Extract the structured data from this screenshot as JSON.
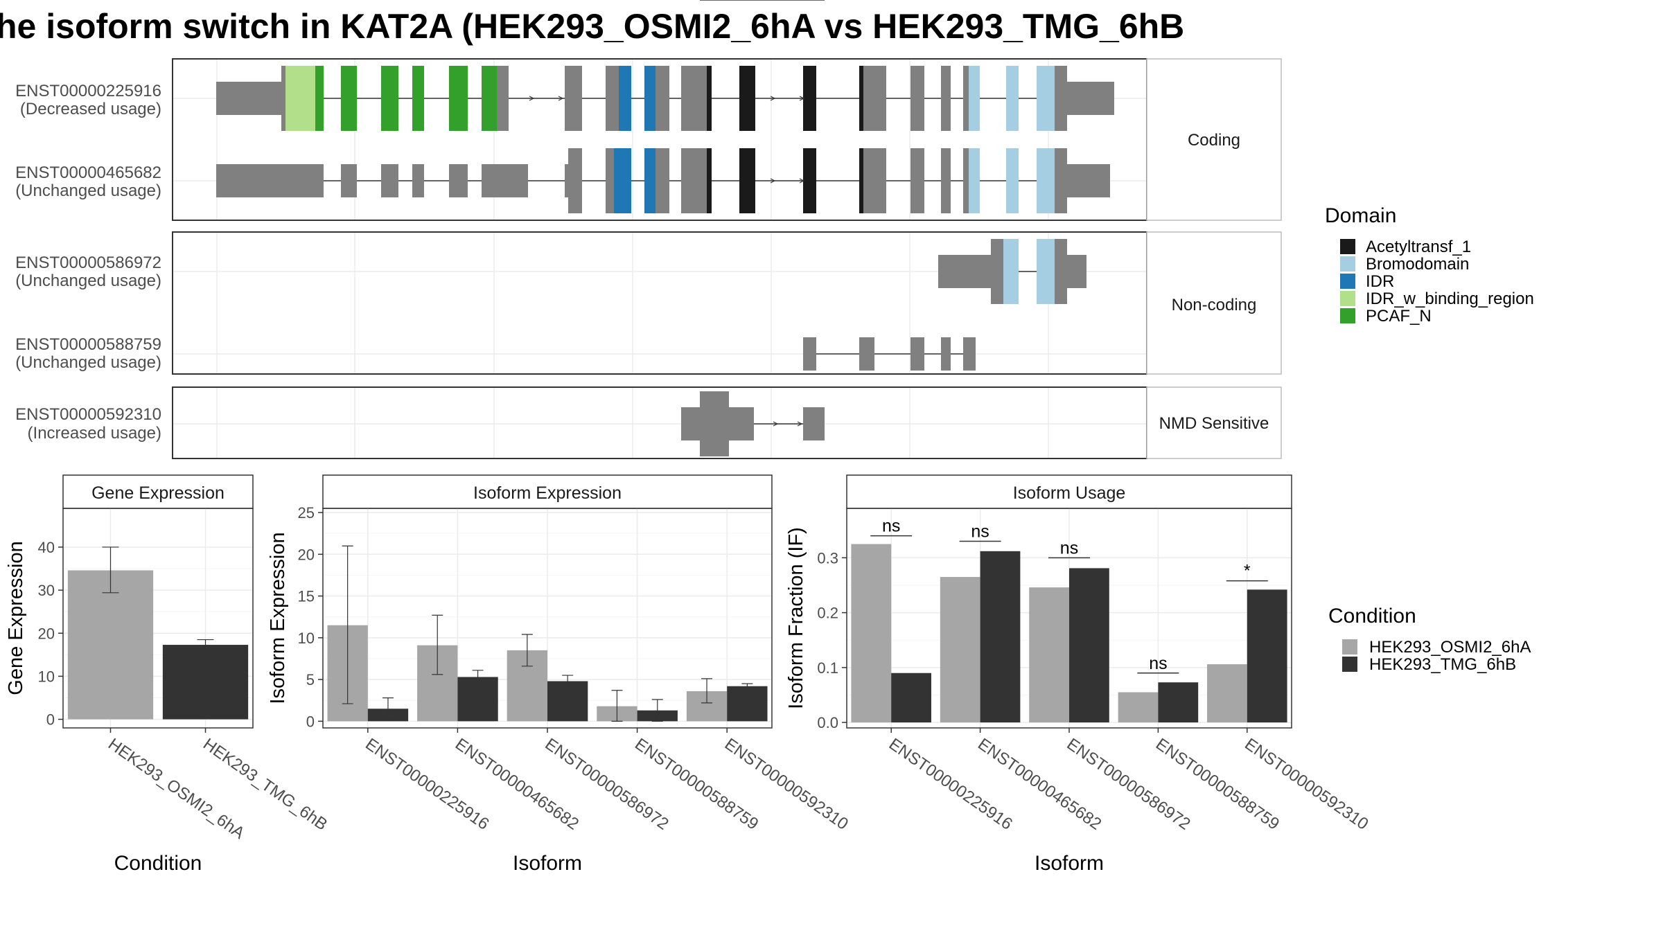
{
  "title": "he isoform switch in KAT2A (HEK293_OSMI2_6hA vs HEK293_TMG_6hB",
  "colors": {
    "domains": {
      "Acetyltransf_1": "#1a1a1a",
      "Bromodomain": "#a6cee3",
      "IDR": "#1f78b4",
      "IDR_w_binding_region": "#b2df8a",
      "PCAF_N": "#33a02c"
    },
    "exon": "#808080",
    "cond_a": "#a6a6a6",
    "cond_b": "#333333"
  },
  "legend_domain": {
    "title": "Domain",
    "items": [
      {
        "label": "Acetyltransf_1",
        "color": "#1a1a1a"
      },
      {
        "label": "Bromodomain",
        "color": "#a6cee3"
      },
      {
        "label": "IDR",
        "color": "#1f78b4"
      },
      {
        "label": "IDR_w_binding_region",
        "color": "#b2df8a"
      },
      {
        "label": "PCAF_N",
        "color": "#33a02c"
      }
    ]
  },
  "legend_condition": {
    "title": "Condition",
    "items": [
      {
        "label": "HEK293_OSMI2_6hA",
        "color": "#a6a6a6"
      },
      {
        "label": "HEK293_TMG_6hB",
        "color": "#333333"
      }
    ]
  },
  "structure": {
    "panels": [
      {
        "label": "Coding",
        "transcripts": [
          "ENST00000225916",
          "ENST00000465682"
        ]
      },
      {
        "label": "Non-coding",
        "transcripts": [
          "ENST00000586972",
          "ENST00000588759"
        ]
      },
      {
        "label": "NMD Sensitive",
        "transcripts": [
          "ENST00000592310"
        ]
      }
    ],
    "transcripts": [
      {
        "id": "ENST00000225916",
        "usage": "(Decreased usage)"
      },
      {
        "id": "ENST00000465682",
        "usage": "(Unchanged usage)"
      },
      {
        "id": "ENST00000586972",
        "usage": "(Unchanged usage)"
      },
      {
        "id": "ENST00000588759",
        "usage": "(Unchanged usage)"
      },
      {
        "id": "ENST00000592310",
        "usage": "(Increased usage)"
      }
    ]
  },
  "chart_data": [
    {
      "type": "bar",
      "title": "Gene Expression",
      "xlabel": "Condition",
      "ylabel": "Gene Expression",
      "categories": [
        "HEK293_OSMI2_6hA",
        "HEK293_TMG_6hB"
      ],
      "values": [
        34.6,
        17.3
      ],
      "error": [
        [
          29.4,
          40.0
        ],
        [
          16.2,
          18.5
        ]
      ],
      "yticks": [
        0,
        10,
        20,
        30,
        40
      ],
      "ylim": [
        -2,
        49
      ]
    },
    {
      "type": "bar",
      "title": "Isoform Expression",
      "xlabel": "Isoform",
      "ylabel": "Isoform Expression",
      "categories": [
        "ENST00000225916",
        "ENST00000465682",
        "ENST00000586972",
        "ENST00000588759",
        "ENST00000592310"
      ],
      "series": [
        {
          "name": "HEK293_OSMI2_6hA",
          "values": [
            11.5,
            9.1,
            8.5,
            1.8,
            3.6
          ],
          "error": [
            [
              2.1,
              21.0
            ],
            [
              5.6,
              12.7
            ],
            [
              6.6,
              10.4
            ],
            [
              0.0,
              3.7
            ],
            [
              2.2,
              5.1
            ]
          ]
        },
        {
          "name": "HEK293_TMG_6hB",
          "values": [
            1.5,
            5.3,
            4.8,
            1.3,
            4.2
          ],
          "error": [
            [
              0.3,
              2.8
            ],
            [
              4.6,
              6.1
            ],
            [
              4.1,
              5.5
            ],
            [
              0.0,
              2.6
            ],
            [
              3.9,
              4.5
            ]
          ]
        }
      ],
      "yticks": [
        0,
        5,
        10,
        15,
        20,
        25
      ],
      "ylim": [
        -0.8,
        25.5
      ]
    },
    {
      "type": "bar",
      "title": "Isoform Usage",
      "xlabel": "Isoform",
      "ylabel": "Isoform Fraction (IF)",
      "categories": [
        "ENST00000225916",
        "ENST00000465682",
        "ENST00000586972",
        "ENST00000588759",
        "ENST00000592310"
      ],
      "series": [
        {
          "name": "HEK293_OSMI2_6hA",
          "values": [
            0.325,
            0.265,
            0.246,
            0.055,
            0.106
          ]
        },
        {
          "name": "HEK293_TMG_6hB",
          "values": [
            0.09,
            0.312,
            0.281,
            0.073,
            0.242
          ]
        }
      ],
      "significance": [
        "ns",
        "ns",
        "ns",
        "ns",
        "*"
      ],
      "sig_y": [
        0.34,
        0.33,
        0.3,
        0.09,
        0.258
      ],
      "yticks": [
        0.0,
        0.1,
        0.2,
        0.3
      ],
      "ylim": [
        -0.01,
        0.39
      ]
    }
  ]
}
